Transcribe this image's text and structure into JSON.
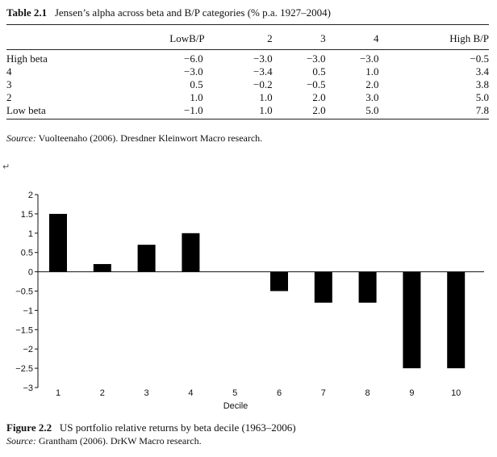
{
  "table": {
    "number": "Table 2.1",
    "title": "Jensen’s alpha across beta and B/P categories (% p.a. 1927–2004)",
    "columns": [
      "",
      "LowB/P",
      "2",
      "3",
      "4",
      "High B/P"
    ],
    "rows": [
      {
        "label": "High beta",
        "values": [
          "−6.0",
          "−3.0",
          "−3.0",
          "−3.0",
          "−0.5"
        ]
      },
      {
        "label": "4",
        "values": [
          "−3.0",
          "−3.4",
          "0.5",
          "1.0",
          "3.4"
        ]
      },
      {
        "label": "3",
        "values": [
          "0.5",
          "−0.2",
          "−0.5",
          "2.0",
          "3.8"
        ]
      },
      {
        "label": "2",
        "values": [
          "1.0",
          "1.0",
          "2.0",
          "3.0",
          "5.0"
        ]
      },
      {
        "label": "Low beta",
        "values": [
          "−1.0",
          "1.0",
          "2.0",
          "5.0",
          "7.8"
        ]
      }
    ],
    "source_label": "Source:",
    "source_text": " Vuolteenaho (2006). Dresdner Kleinwort Macro research."
  },
  "return_symbol": "↵",
  "chart_data": {
    "type": "bar",
    "categories": [
      "1",
      "2",
      "3",
      "4",
      "5",
      "6",
      "7",
      "8",
      "9",
      "10"
    ],
    "values": [
      1.5,
      0.2,
      0.7,
      1.0,
      0,
      -0.5,
      -0.8,
      -0.8,
      -2.5,
      -2.5
    ],
    "ylim": [
      -3,
      2
    ],
    "yticks": [
      2,
      1.5,
      1,
      0.5,
      0,
      -0.5,
      -1,
      -1.5,
      -2,
      -2.5,
      -3
    ],
    "ytick_labels": [
      "2",
      "1.5",
      "1",
      "0.5",
      "0",
      "−0.5",
      "−1",
      "−1.5",
      "−2",
      "−2.5",
      "−3"
    ],
    "xlabel": "Decile",
    "ylabel": "",
    "bar_color": "#000000",
    "grid": false
  },
  "figure": {
    "number": "Figure 2.2",
    "title": "US portfolio relative returns by beta decile (1963–2006)",
    "source_label": "Source:",
    "source_text": " Grantham (2006). DrKW Macro research."
  }
}
